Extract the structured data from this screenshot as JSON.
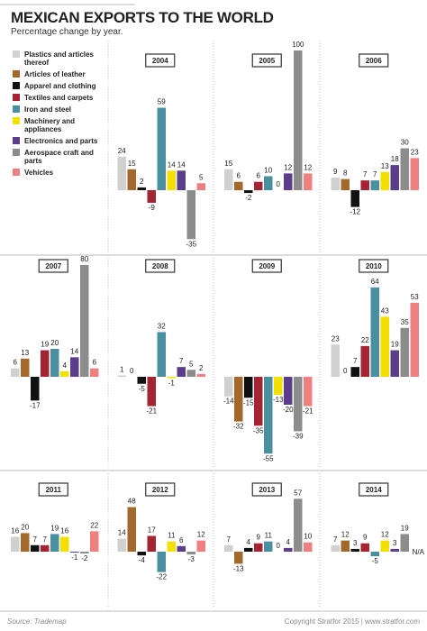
{
  "title": "MEXICAN EXPORTS TO THE WORLD",
  "subtitle": "Percentage change by year.",
  "source": "Source: Trademap",
  "copyright": "Copyright Stratfor 2015",
  "website": "www.stratfor.com",
  "legend": [
    {
      "name": "Plastics and articles thereof",
      "color": "#d0d0d0"
    },
    {
      "name": "Articles of leather",
      "color": "#a3692b"
    },
    {
      "name": "Apparel and clothing",
      "color": "#111111"
    },
    {
      "name": "Textiles and carpets",
      "color": "#a52434"
    },
    {
      "name": "Iron and steel",
      "color": "#4a8fa0"
    },
    {
      "name": "Machinery and appliances",
      "color": "#f3e000"
    },
    {
      "name": "Electronics and parts",
      "color": "#5b3d8c"
    },
    {
      "name": "Aerospace craft and parts",
      "color": "#8c8c8c"
    },
    {
      "name": "Vehicles",
      "color": "#f08080"
    }
  ],
  "chart_data": [
    {
      "type": "bar",
      "title": "2004",
      "values": [
        24,
        15,
        2,
        -9,
        59,
        14,
        14,
        -35,
        5
      ]
    },
    {
      "type": "bar",
      "title": "2005",
      "values": [
        15,
        6,
        -2,
        6,
        10,
        0,
        12,
        100,
        12
      ]
    },
    {
      "type": "bar",
      "title": "2006",
      "values": [
        9,
        8,
        -12,
        7,
        7,
        13,
        18,
        30,
        23
      ]
    },
    {
      "type": "bar",
      "title": "2007",
      "values": [
        6,
        13,
        -17,
        19,
        20,
        4,
        14,
        80,
        6
      ]
    },
    {
      "type": "bar",
      "title": "2008",
      "values": [
        1,
        0,
        -5,
        -21,
        32,
        -1,
        7,
        5,
        2
      ]
    },
    {
      "type": "bar",
      "title": "2009",
      "values": [
        -14,
        -32,
        -15,
        -35,
        -55,
        -13,
        -20,
        -39,
        -21
      ]
    },
    {
      "type": "bar",
      "title": "2010",
      "values": [
        23,
        0,
        7,
        22,
        64,
        43,
        19,
        35,
        53
      ]
    },
    {
      "type": "bar",
      "title": "2011",
      "values": [
        16,
        20,
        7,
        7,
        19,
        16,
        -1,
        -2,
        22
      ]
    },
    {
      "type": "bar",
      "title": "2012",
      "values": [
        14,
        48,
        -4,
        17,
        -22,
        11,
        6,
        -3,
        12
      ]
    },
    {
      "type": "bar",
      "title": "2013",
      "values": [
        7,
        -13,
        4,
        9,
        11,
        0,
        4,
        57,
        10
      ]
    },
    {
      "type": "bar",
      "title": "2014",
      "values": [
        7,
        12,
        3,
        9,
        -5,
        12,
        3,
        19,
        null
      ],
      "value_labels": [
        "7",
        "12",
        "3",
        "9",
        "-5",
        "12",
        "3",
        "19",
        "N/A"
      ]
    }
  ]
}
